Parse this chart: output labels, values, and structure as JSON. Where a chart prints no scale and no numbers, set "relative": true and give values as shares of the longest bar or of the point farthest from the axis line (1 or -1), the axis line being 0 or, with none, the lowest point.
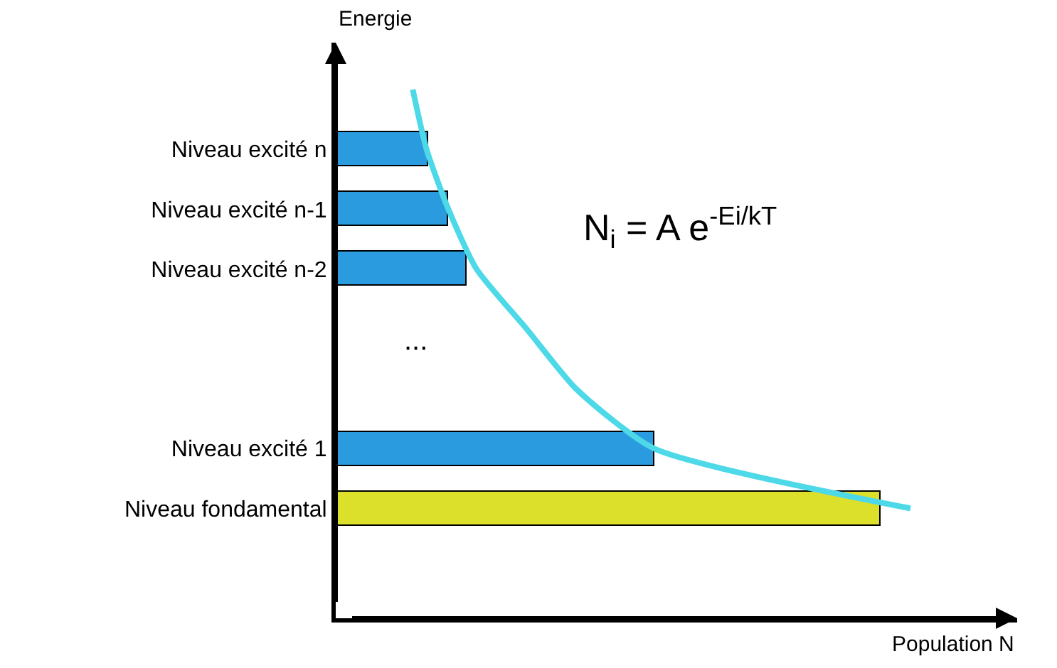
{
  "chart_data": {
    "type": "bar",
    "orientation": "horizontal",
    "relative": true,
    "xlabel": "Population N",
    "ylabel": "Energie",
    "marker": "none",
    "categories": [
      null,
      "Niveau excité n",
      "Niveau excité n-1",
      "Niveau excité n-2",
      null,
      null,
      "Niveau excité 1",
      "Niveau fondamental"
    ],
    "series": [
      {
        "colors": [
          null,
          "#2b9be0",
          "#2b9be0",
          "#2b9be0",
          null,
          null,
          "#2b9be0",
          "#dde02a"
        ],
        "values": [
          null,
          0.16,
          0.196,
          0.228,
          null,
          null,
          0.554,
          0.948
        ]
      },
      {
        "type": "line",
        "color": "#4dd9e8",
        "values": [
          0.134,
          0.158,
          0.196,
          0.245,
          0.332,
          0.418,
          0.554,
          1
        ]
      }
    ],
    "annotations": [
      "...",
      "N$_{i}$ = A e$^{-Ei/kT}$"
    ]
  }
}
